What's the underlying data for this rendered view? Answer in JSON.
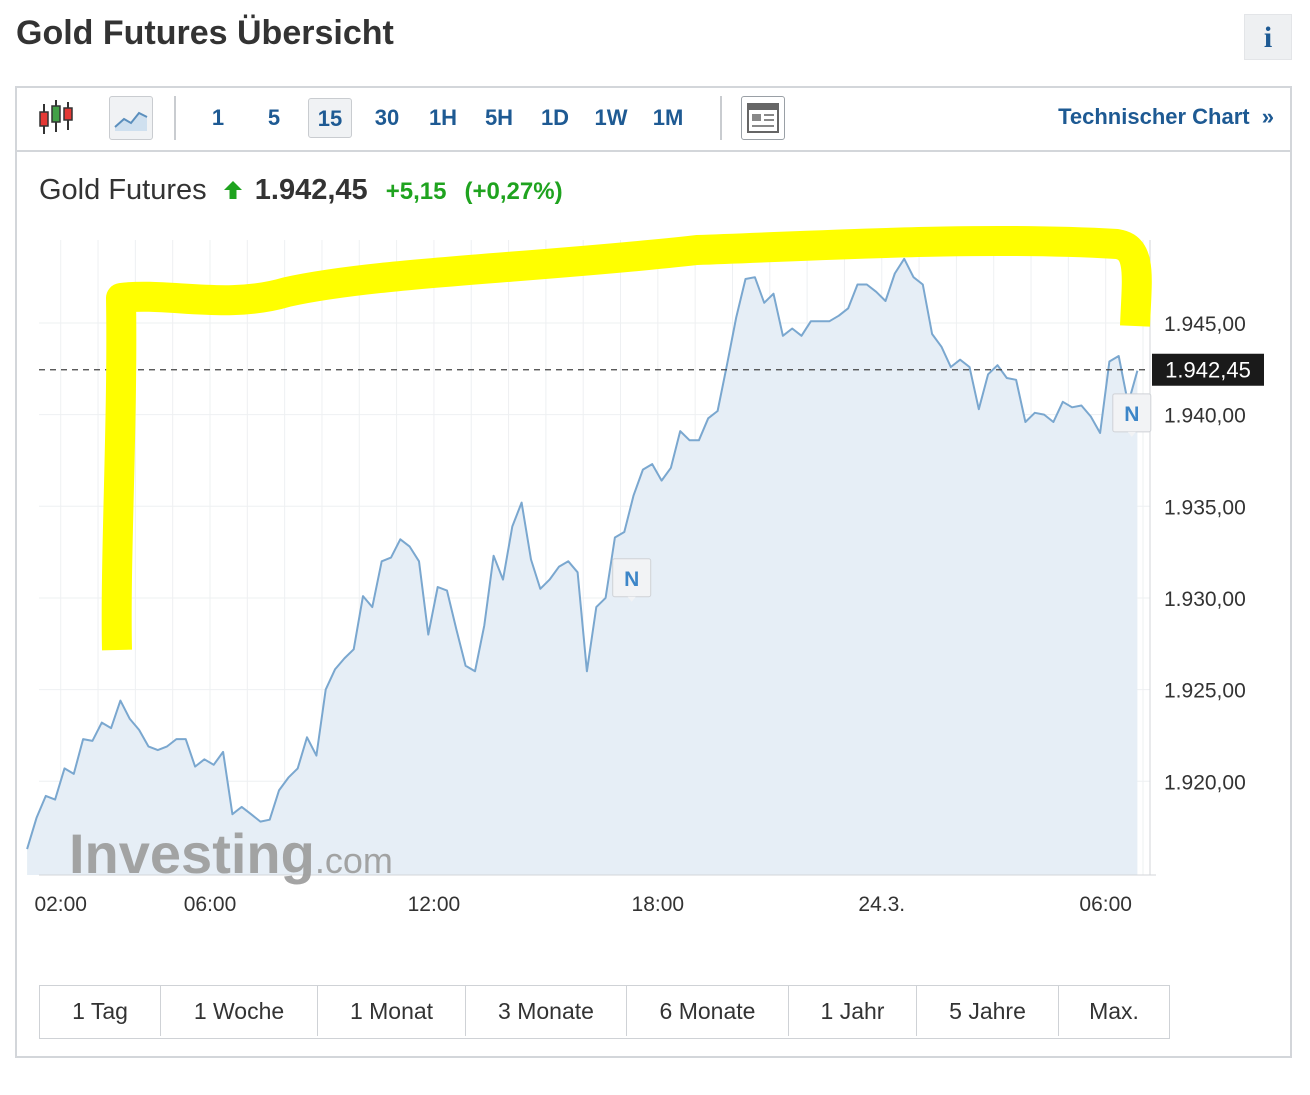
{
  "page": {
    "title": "Gold Futures Übersicht",
    "info_label": "i"
  },
  "toolbar": {
    "intervals": [
      "1",
      "5",
      "15",
      "30",
      "1H",
      "5H",
      "1D",
      "1W",
      "1M"
    ],
    "active_interval": "15",
    "technical_chart_label": "Technischer Chart",
    "technical_chart_arrow": "»"
  },
  "quote": {
    "name": "Gold Futures",
    "price": "1.942,45",
    "change": "+5,15",
    "change_percent": "(+0,27%)",
    "direction": "up"
  },
  "colors": {
    "link": "#1e5a93",
    "positive": "#1fa31f",
    "line": "#7aa7cf",
    "area": "#e6eef6",
    "highlight": "#ffff00",
    "price_tag": "#1a1a1a"
  },
  "chart_data": {
    "type": "area",
    "y_ticks": [
      "1.945,00",
      "1.940,00",
      "1.935,00",
      "1.930,00",
      "1.925,00",
      "1.920,00"
    ],
    "y_tick_values": [
      1945,
      1940,
      1935,
      1930,
      1925,
      1920
    ],
    "x_ticks": [
      "02:00",
      "06:00",
      "12:00",
      "18:00",
      "24.3.",
      "06:00"
    ],
    "x_tick_hours": [
      2,
      6,
      12,
      18,
      24,
      30
    ],
    "last_price_label": "1.942,45",
    "last_price_value": 1942.45,
    "news_markers": [
      {
        "label": "N",
        "hour": 17.3,
        "value": 1930.5
      },
      {
        "label": "N",
        "hour": 30.7,
        "value": 1939.5
      }
    ],
    "watermark": {
      "brand": "Investing",
      "suffix": ".com"
    },
    "series": [
      {
        "points": [
          [
            1.1,
            1916.3
          ],
          [
            1.35,
            1918.0
          ],
          [
            1.6,
            1919.2
          ],
          [
            1.85,
            1919.0
          ],
          [
            2.1,
            1920.7
          ],
          [
            2.35,
            1920.4
          ],
          [
            2.6,
            1922.3
          ],
          [
            2.85,
            1922.2
          ],
          [
            3.1,
            1923.2
          ],
          [
            3.35,
            1922.9
          ],
          [
            3.6,
            1924.4
          ],
          [
            3.85,
            1923.4
          ],
          [
            4.1,
            1922.8
          ],
          [
            4.35,
            1921.9
          ],
          [
            4.6,
            1921.7
          ],
          [
            4.85,
            1921.9
          ],
          [
            5.1,
            1922.3
          ],
          [
            5.35,
            1922.3
          ],
          [
            5.6,
            1920.8
          ],
          [
            5.85,
            1921.2
          ],
          [
            6.1,
            1920.9
          ],
          [
            6.35,
            1921.6
          ],
          [
            6.6,
            1918.2
          ],
          [
            6.85,
            1918.6
          ],
          [
            7.1,
            1918.2
          ],
          [
            7.35,
            1917.8
          ],
          [
            7.6,
            1917.9
          ],
          [
            7.85,
            1919.5
          ],
          [
            8.1,
            1920.2
          ],
          [
            8.35,
            1920.7
          ],
          [
            8.6,
            1922.4
          ],
          [
            8.85,
            1921.4
          ],
          [
            9.1,
            1925.0
          ],
          [
            9.35,
            1926.1
          ],
          [
            9.6,
            1926.7
          ],
          [
            9.85,
            1927.2
          ],
          [
            10.1,
            1930.1
          ],
          [
            10.35,
            1929.5
          ],
          [
            10.6,
            1932.0
          ],
          [
            10.85,
            1932.2
          ],
          [
            11.1,
            1933.2
          ],
          [
            11.35,
            1932.8
          ],
          [
            11.6,
            1932.0
          ],
          [
            11.85,
            1928.0
          ],
          [
            12.1,
            1930.6
          ],
          [
            12.35,
            1930.4
          ],
          [
            12.6,
            1928.3
          ],
          [
            12.85,
            1926.3
          ],
          [
            13.1,
            1926.0
          ],
          [
            13.35,
            1928.5
          ],
          [
            13.6,
            1932.3
          ],
          [
            13.85,
            1931.0
          ],
          [
            14.1,
            1933.9
          ],
          [
            14.35,
            1935.2
          ],
          [
            14.6,
            1932.1
          ],
          [
            14.85,
            1930.5
          ],
          [
            15.1,
            1931.0
          ],
          [
            15.35,
            1931.7
          ],
          [
            15.6,
            1932.0
          ],
          [
            15.85,
            1931.4
          ],
          [
            16.1,
            1926.0
          ],
          [
            16.35,
            1929.5
          ],
          [
            16.6,
            1930.0
          ],
          [
            16.85,
            1933.3
          ],
          [
            17.1,
            1933.6
          ],
          [
            17.35,
            1935.6
          ],
          [
            17.6,
            1937.0
          ],
          [
            17.85,
            1937.3
          ],
          [
            18.1,
            1936.4
          ],
          [
            18.35,
            1937.1
          ],
          [
            18.6,
            1939.1
          ],
          [
            18.85,
            1938.6
          ],
          [
            19.1,
            1938.6
          ],
          [
            19.35,
            1939.8
          ],
          [
            19.6,
            1940.2
          ],
          [
            19.85,
            1942.7
          ],
          [
            20.1,
            1945.3
          ],
          [
            20.35,
            1947.4
          ],
          [
            20.6,
            1947.5
          ],
          [
            20.85,
            1946.1
          ],
          [
            21.1,
            1946.6
          ],
          [
            21.35,
            1944.3
          ],
          [
            21.6,
            1944.7
          ],
          [
            21.85,
            1944.3
          ],
          [
            22.1,
            1945.1
          ],
          [
            22.35,
            1945.1
          ],
          [
            22.6,
            1945.1
          ],
          [
            22.85,
            1945.4
          ],
          [
            23.1,
            1945.8
          ],
          [
            23.35,
            1947.1
          ],
          [
            23.6,
            1947.1
          ],
          [
            23.85,
            1946.7
          ],
          [
            24.1,
            1946.2
          ],
          [
            24.35,
            1947.7
          ],
          [
            24.6,
            1948.5
          ],
          [
            24.85,
            1947.5
          ],
          [
            25.1,
            1947.1
          ],
          [
            25.35,
            1944.4
          ],
          [
            25.6,
            1943.7
          ],
          [
            25.85,
            1942.6
          ],
          [
            26.1,
            1943.0
          ],
          [
            26.35,
            1942.6
          ],
          [
            26.6,
            1940.3
          ],
          [
            26.85,
            1942.2
          ],
          [
            27.1,
            1942.7
          ],
          [
            27.35,
            1942.0
          ],
          [
            27.6,
            1941.9
          ],
          [
            27.85,
            1939.6
          ],
          [
            28.1,
            1940.1
          ],
          [
            28.35,
            1940.0
          ],
          [
            28.6,
            1939.6
          ],
          [
            28.85,
            1940.7
          ],
          [
            29.1,
            1940.4
          ],
          [
            29.35,
            1940.5
          ],
          [
            29.6,
            1939.9
          ],
          [
            29.85,
            1939.0
          ],
          [
            30.1,
            1942.9
          ],
          [
            30.35,
            1943.2
          ],
          [
            30.6,
            1940.6
          ],
          [
            30.85,
            1942.4
          ]
        ]
      }
    ]
  },
  "ranges": [
    "1 Tag",
    "1 Woche",
    "1 Monat",
    "3 Monate",
    "6 Monate",
    "1 Jahr",
    "5 Jahre",
    "Max."
  ]
}
